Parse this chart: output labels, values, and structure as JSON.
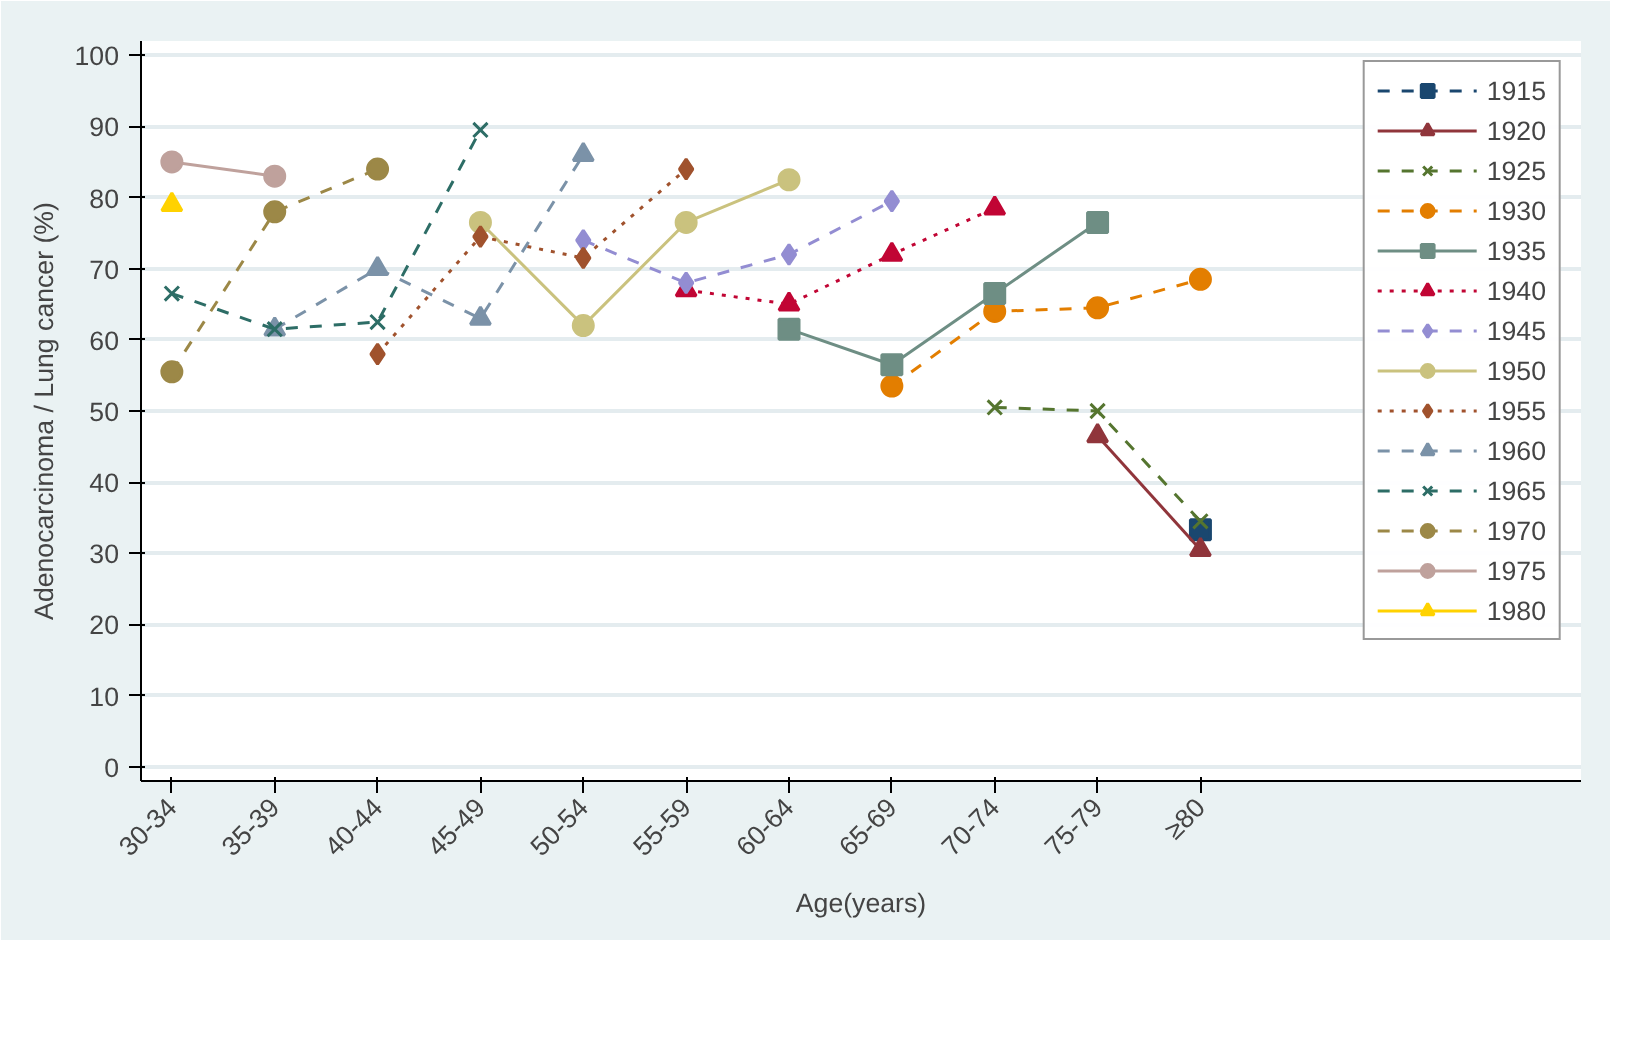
{
  "chart_data": {
    "type": "line",
    "xlabel": "Age(years)",
    "ylabel": "Adenocarcinoma / Lung cancer (%)",
    "categories": [
      "30-34",
      "35-39",
      "40-44",
      "45-49",
      "50-54",
      "55-59",
      "60-64",
      "65-69",
      "70-74",
      "75-79",
      "≥80"
    ],
    "ylim": [
      -2,
      102
    ],
    "yticks": [
      0,
      10,
      20,
      30,
      40,
      50,
      60,
      70,
      80,
      90,
      100
    ],
    "grid": "y",
    "legend": "right",
    "series": [
      {
        "name": "1915",
        "color": "#1a476f",
        "marker": "square",
        "line_style": "dashed",
        "values": [
          null,
          null,
          null,
          null,
          null,
          null,
          null,
          null,
          null,
          null,
          33.3
        ]
      },
      {
        "name": "1920",
        "color": "#90353b",
        "marker": "triangle",
        "line_style": "solid",
        "values": [
          null,
          null,
          null,
          null,
          null,
          null,
          null,
          null,
          null,
          46.5,
          30.5
        ]
      },
      {
        "name": "1925",
        "color": "#55752f",
        "marker": "cross",
        "line_style": "dashed",
        "values": [
          null,
          null,
          null,
          null,
          null,
          null,
          null,
          null,
          50.5,
          50,
          34.5
        ]
      },
      {
        "name": "1930",
        "color": "#e37e00",
        "marker": "circle",
        "line_style": "dashed",
        "values": [
          null,
          null,
          null,
          null,
          null,
          null,
          null,
          53.5,
          64,
          64.5,
          68.5
        ]
      },
      {
        "name": "1935",
        "color": "#6e8e84",
        "marker": "square",
        "line_style": "solid",
        "values": [
          null,
          null,
          null,
          null,
          null,
          null,
          61.5,
          56.5,
          66.5,
          76.5,
          null
        ]
      },
      {
        "name": "1940",
        "color": "#c10534",
        "marker": "triangle",
        "line_style": "dotted",
        "values": [
          null,
          null,
          null,
          null,
          null,
          67,
          65,
          72,
          78.5,
          null,
          null
        ]
      },
      {
        "name": "1945",
        "color": "#938dd2",
        "marker": "diamond",
        "line_style": "dashed",
        "values": [
          null,
          null,
          null,
          null,
          74,
          68,
          72,
          79.5,
          null,
          null,
          null
        ]
      },
      {
        "name": "1950",
        "color": "#cac27e",
        "marker": "circle",
        "line_style": "solid",
        "values": [
          null,
          null,
          null,
          76.5,
          62,
          76.5,
          82.5,
          null,
          null,
          null,
          null
        ]
      },
      {
        "name": "1955",
        "color": "#a0522d",
        "marker": "diamond",
        "line_style": "dotted",
        "values": [
          null,
          null,
          58,
          74.5,
          71.5,
          84,
          null,
          null,
          null,
          null,
          null
        ]
      },
      {
        "name": "1960",
        "color": "#7b92a8",
        "marker": "triangle",
        "line_style": "dashed",
        "values": [
          null,
          61.5,
          70,
          63,
          86,
          null,
          null,
          null,
          null,
          null,
          null
        ]
      },
      {
        "name": "1965",
        "color": "#2d6d66",
        "marker": "cross",
        "line_style": "dashed",
        "values": [
          66.5,
          61.5,
          62.5,
          89.5,
          null,
          null,
          null,
          null,
          null,
          null,
          null
        ]
      },
      {
        "name": "1970",
        "color": "#9c8847",
        "marker": "circle",
        "line_style": "dashed",
        "values": [
          55.5,
          78,
          84,
          null,
          null,
          null,
          null,
          null,
          null,
          null,
          null
        ]
      },
      {
        "name": "1975",
        "color": "#bfa19c",
        "marker": "circle",
        "line_style": "solid",
        "values": [
          85,
          83,
          null,
          null,
          null,
          null,
          null,
          null,
          null,
          null,
          null
        ]
      },
      {
        "name": "1980",
        "color": "#ffd200",
        "marker": "triangle",
        "line_style": "solid",
        "values": [
          79,
          null,
          null,
          null,
          null,
          null,
          null,
          null,
          null,
          null,
          null
        ]
      }
    ]
  }
}
